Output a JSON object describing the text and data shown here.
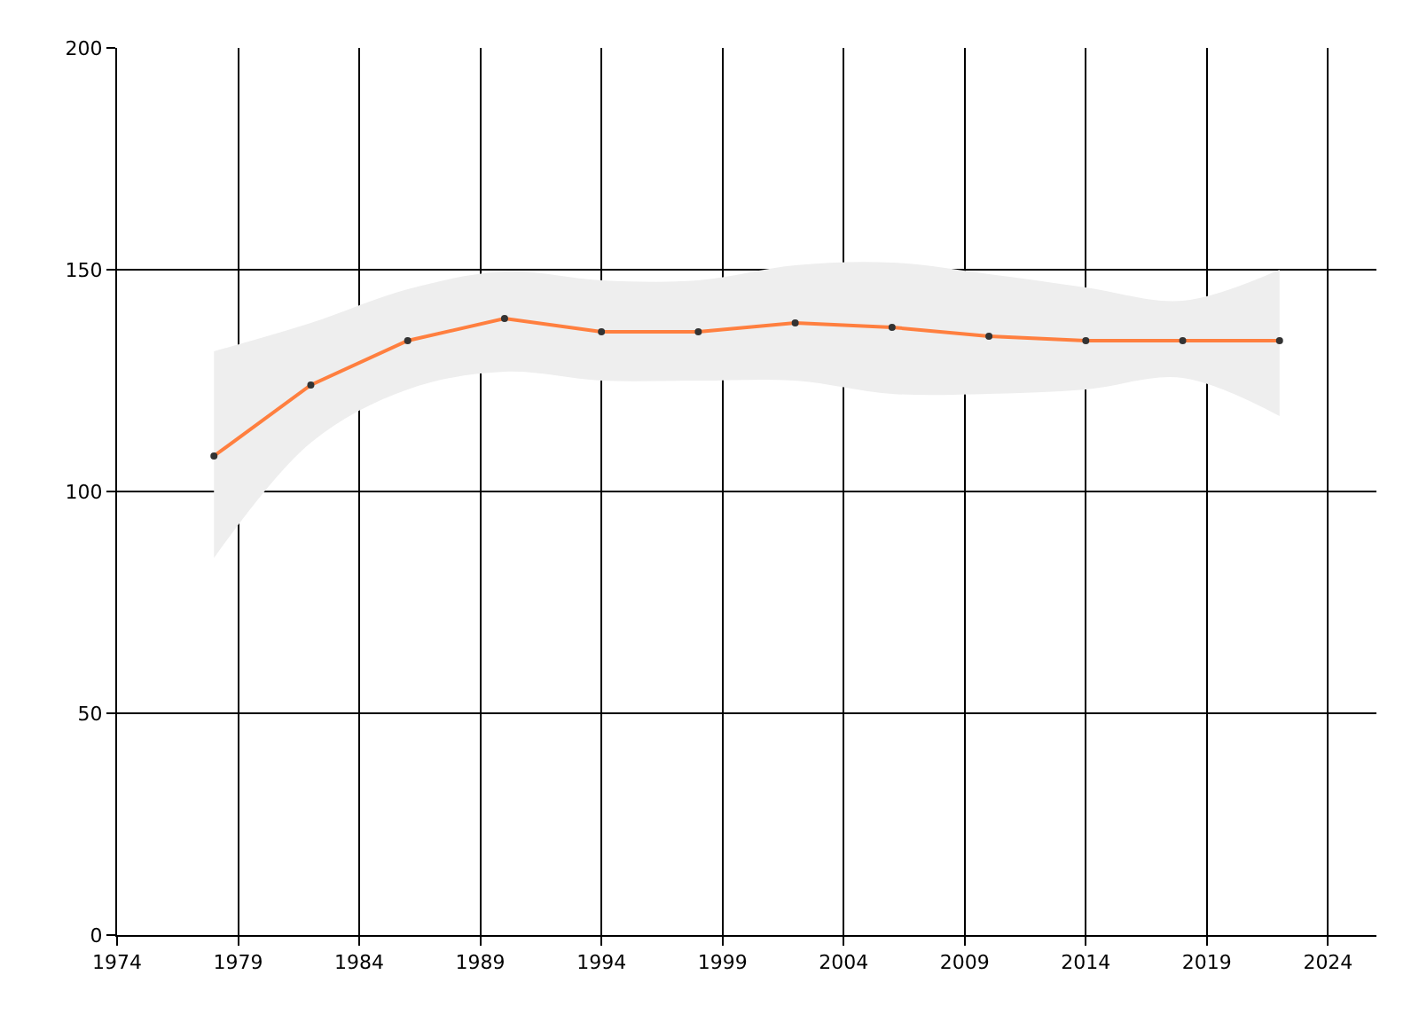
{
  "chart_data": {
    "type": "line",
    "x": [
      1978,
      1982,
      1986,
      1990,
      1994,
      1998,
      2002,
      2006,
      2010,
      2014,
      2018,
      2022
    ],
    "series": [
      {
        "color": "#ff7f3f",
        "values": [
          108,
          124,
          134,
          139,
          136,
          136,
          138,
          137,
          135,
          134,
          134,
          134
        ],
        "lower": [
          85,
          111,
          123,
          127,
          125,
          125,
          125,
          122,
          122,
          123,
          125.6,
          117
        ],
        "upper": [
          131.6,
          138,
          145.6,
          149.6,
          147.6,
          147.6,
          151,
          151.6,
          149,
          146,
          143,
          150
        ]
      }
    ],
    "xlim": [
      1974,
      2026
    ],
    "xticks": [
      1974,
      1979,
      1984,
      1989,
      1994,
      1999,
      2004,
      2009,
      2014,
      2019,
      2024
    ],
    "ylim": [
      0,
      200
    ],
    "yticks": [
      0,
      50,
      100,
      150,
      200
    ],
    "grid": true,
    "marker": "circle",
    "line_style": "solid"
  }
}
